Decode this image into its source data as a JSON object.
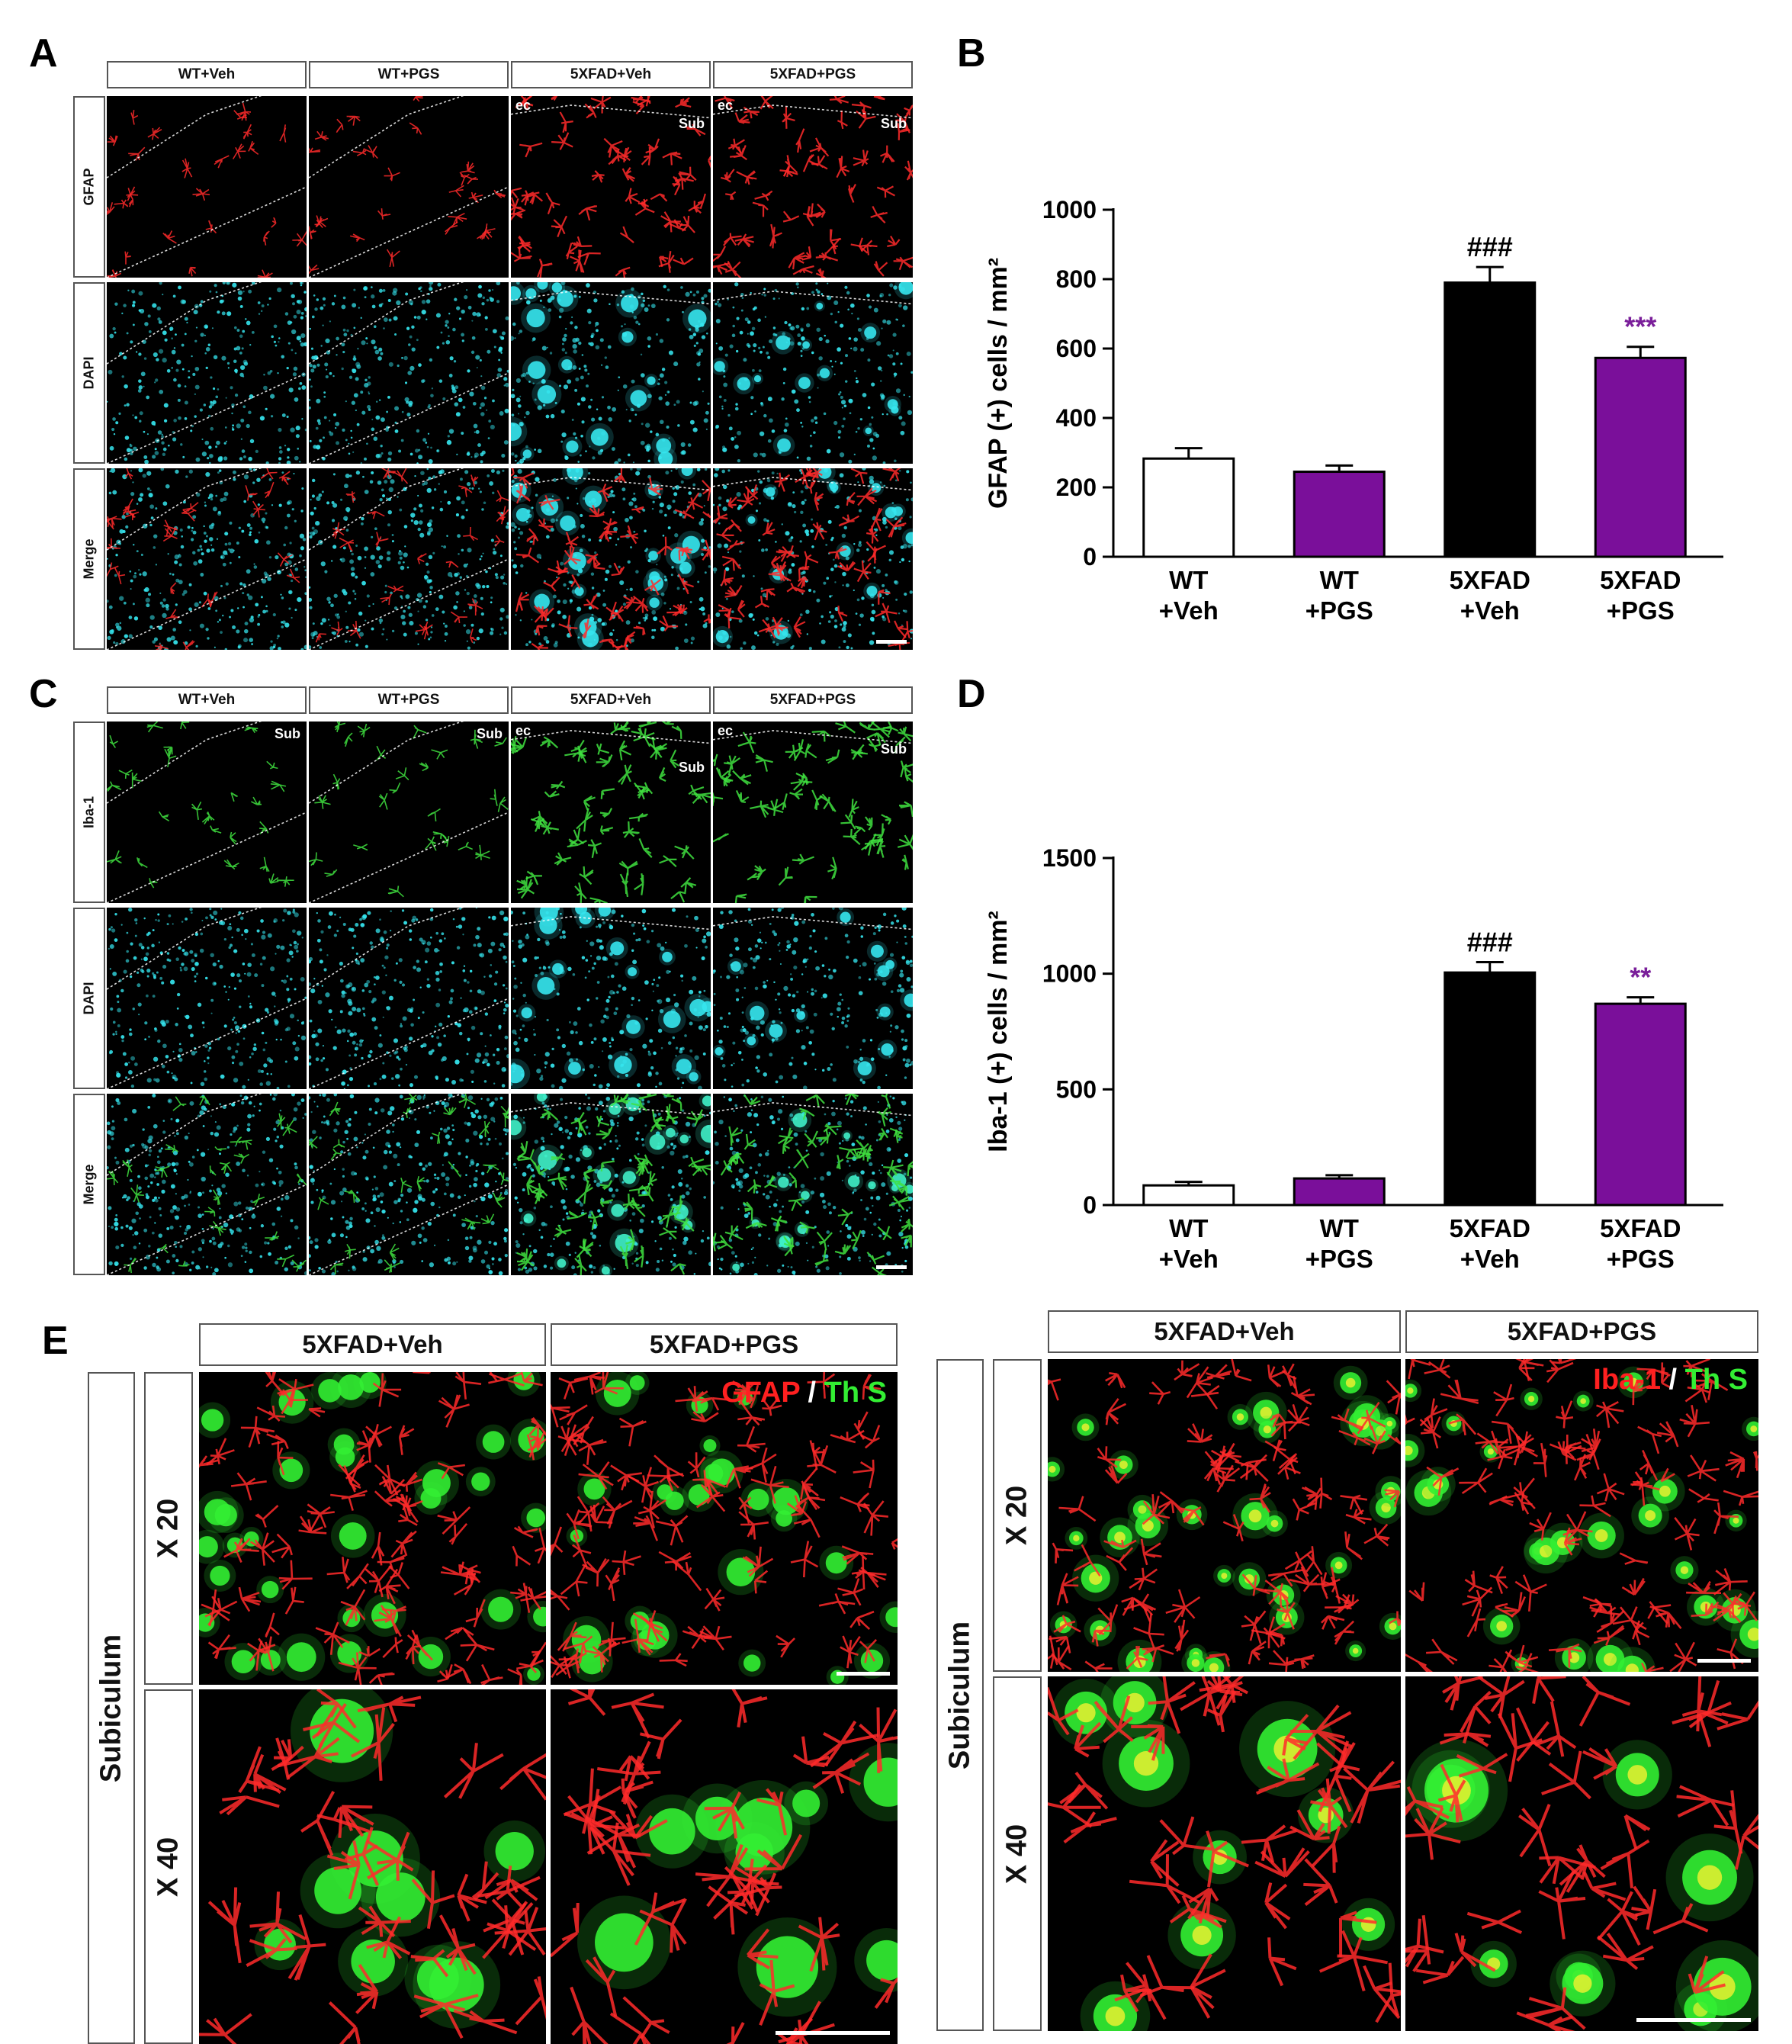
{
  "panels": {
    "A": {
      "letter": "A",
      "columns": [
        "WT+Veh",
        "WT+PGS",
        "5XFAD+Veh",
        "5XFAD+PGS"
      ],
      "rows": [
        "GFAP",
        "DAPI",
        "Merge"
      ],
      "labels": {
        "ec": "ec",
        "sub": "Sub"
      }
    },
    "B": {
      "letter": "B"
    },
    "C": {
      "letter": "C",
      "columns": [
        "WT+Veh",
        "WT+PGS",
        "5XFAD+Veh",
        "5XFAD+PGS"
      ],
      "rows": [
        "Iba-1",
        "DAPI",
        "Merge"
      ],
      "labels": {
        "ec": "ec",
        "sub": "Sub"
      }
    },
    "D": {
      "letter": "D"
    },
    "E": {
      "letter": "E",
      "left": {
        "columns": [
          "5XFAD+Veh",
          "5XFAD+PGS"
        ],
        "region": "Subiculum",
        "mags": [
          "X 20",
          "X 40"
        ],
        "legend": {
          "a": "GFAP",
          "sep": " / ",
          "b": "Th S"
        }
      },
      "right": {
        "columns": [
          "5XFAD+Veh",
          "5XFAD+PGS"
        ],
        "region": "Subiculum",
        "mags": [
          "X 20",
          "X 40"
        ],
        "legend": {
          "a": "Iba-1",
          "sep": " / ",
          "b": "Th S"
        }
      }
    }
  },
  "colors": {
    "gfap": "#ff2a2a",
    "dapi": "#35e5ee",
    "iba": "#3fe23f",
    "ths": "#33ee33",
    "wt_veh": "#ffffff",
    "wt_pgs": "#7a0f9a",
    "fad_veh": "#000000",
    "fad_pgs": "#7a0f9a",
    "sig": "#7a1f9a"
  },
  "chart_data": [
    {
      "type": "bar",
      "panel": "B",
      "categories": [
        "WT\n+Veh",
        "WT\n+PGS",
        "5XFAD\n+Veh",
        "5XFAD\n+PGS"
      ],
      "values": [
        283,
        245,
        790,
        573
      ],
      "errors": [
        30,
        18,
        45,
        32
      ],
      "ylabel": "GFAP (+) cells / mm²",
      "ylim": [
        0,
        1000
      ],
      "yticks": [
        0,
        200,
        400,
        600,
        800,
        1000
      ],
      "annotations": [
        "",
        "",
        "###",
        "***"
      ]
    },
    {
      "type": "bar",
      "panel": "D",
      "categories": [
        "WT\n+Veh",
        "WT\n+PGS",
        "5XFAD\n+Veh",
        "5XFAD\n+PGS"
      ],
      "values": [
        85,
        115,
        1005,
        870
      ],
      "errors": [
        15,
        14,
        45,
        28
      ],
      "ylabel": "Iba-1 (+) cells / mm²",
      "ylim": [
        0,
        1500
      ],
      "yticks": [
        0,
        500,
        1000,
        1500
      ],
      "annotations": [
        "",
        "",
        "###",
        "**"
      ]
    }
  ]
}
